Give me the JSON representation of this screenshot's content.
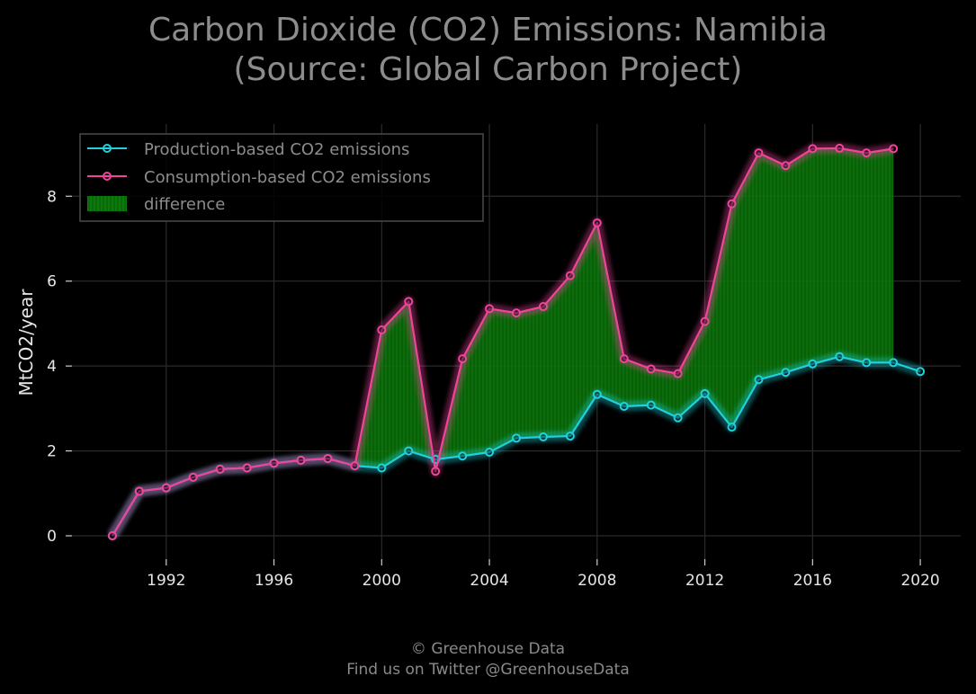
{
  "title_line1": "Carbon Dioxide (CO2) Emissions: Namibia",
  "title_line2": "(Source: Global Carbon Project)",
  "footer_line1": "© Greenhouse Data",
  "footer_line2": "Find us on Twitter @GreenhouseData",
  "colors": {
    "production": "#1fd1dc",
    "consumption": "#f0449c",
    "difference": "#0a7a0a",
    "grid": "#2b2b2b",
    "background": "#000000"
  },
  "chart_data": {
    "type": "line",
    "title": "Carbon Dioxide (CO2) Emissions: Namibia (Source: Global Carbon Project)",
    "xlabel": "",
    "ylabel": "MtCO2/year",
    "xlim": [
      1988.5,
      2021.5
    ],
    "ylim": [
      -0.55,
      9.7
    ],
    "xticks": [
      1992,
      1996,
      2000,
      2004,
      2008,
      2012,
      2016,
      2020
    ],
    "yticks": [
      0,
      2,
      4,
      6,
      8
    ],
    "grid": true,
    "legend_position": "top-left",
    "series": [
      {
        "name": "Production-based CO2 emissions",
        "x": [
          1990,
          1991,
          1992,
          1993,
          1994,
          1995,
          1996,
          1997,
          1998,
          1999,
          2000,
          2001,
          2002,
          2003,
          2004,
          2005,
          2006,
          2007,
          2008,
          2009,
          2010,
          2011,
          2012,
          2013,
          2014,
          2015,
          2016,
          2017,
          2018,
          2019,
          2020
        ],
        "values": [
          0.0,
          1.05,
          1.13,
          1.38,
          1.57,
          1.6,
          1.71,
          1.78,
          1.82,
          1.65,
          1.6,
          2.0,
          1.8,
          1.88,
          1.97,
          2.3,
          2.33,
          2.35,
          3.33,
          3.05,
          3.08,
          2.78,
          3.35,
          2.56,
          3.68,
          3.85,
          4.05,
          4.22,
          4.08,
          4.08,
          3.87
        ]
      },
      {
        "name": "Consumption-based CO2 emissions",
        "x": [
          1990,
          1991,
          1992,
          1993,
          1994,
          1995,
          1996,
          1997,
          1998,
          1999,
          2000,
          2001,
          2002,
          2003,
          2004,
          2005,
          2006,
          2007,
          2008,
          2009,
          2010,
          2011,
          2012,
          2013,
          2014,
          2015,
          2016,
          2017,
          2018,
          2019
        ],
        "values": [
          0.0,
          1.05,
          1.13,
          1.38,
          1.57,
          1.6,
          1.71,
          1.78,
          1.82,
          1.65,
          4.85,
          5.52,
          1.52,
          4.17,
          5.35,
          5.25,
          5.4,
          6.13,
          7.37,
          4.17,
          3.93,
          3.82,
          5.05,
          7.82,
          9.02,
          8.72,
          9.12,
          9.13,
          9.02,
          9.12
        ]
      }
    ],
    "fill_between": {
      "name": "difference",
      "between": [
        "Consumption-based CO2 emissions",
        "Production-based CO2 emissions"
      ],
      "x_range": [
        1999,
        2019
      ]
    }
  }
}
